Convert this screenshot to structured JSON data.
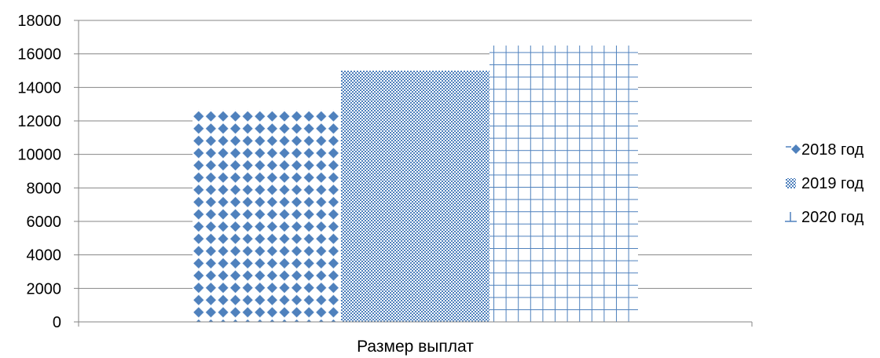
{
  "chart_data": {
    "type": "bar",
    "title": "",
    "xlabel": "",
    "ylabel": "",
    "categories": [
      "Размер выплат"
    ],
    "ylim": [
      0,
      18000
    ],
    "yticks": [
      0,
      2000,
      4000,
      6000,
      8000,
      10000,
      12000,
      14000,
      16000,
      18000
    ],
    "grid": true,
    "legend": "right",
    "series": [
      {
        "name": "2018 год",
        "values": [
          12700
        ],
        "color": "#4f81bd",
        "pattern": "diamonds"
      },
      {
        "name": "2019 год",
        "values": [
          15000
        ],
        "color": "#4f81bd",
        "pattern": "checker"
      },
      {
        "name": "2020 год",
        "values": [
          16500
        ],
        "color": "#4f81bd",
        "pattern": "grid"
      }
    ]
  }
}
